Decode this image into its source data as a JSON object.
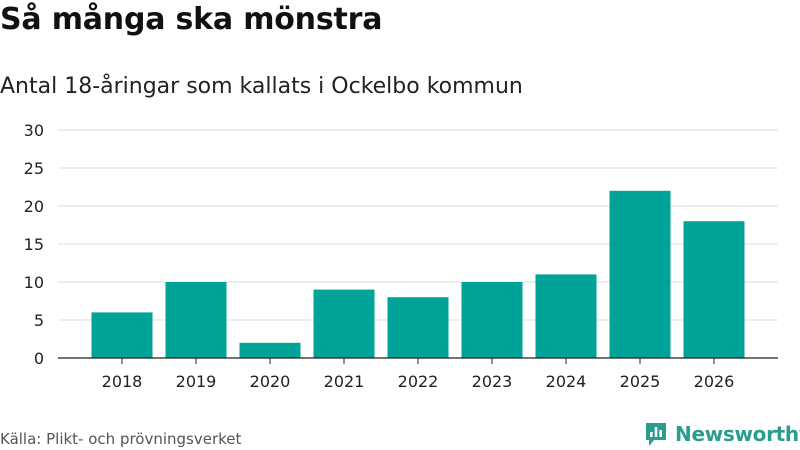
{
  "header": {
    "title": "Så många ska mönstra",
    "subtitle": "Antal 18-åringar som kallats i Ockelbo kommun"
  },
  "footer": {
    "source": "Källa: Plikt- och prövningsverket",
    "brand": "Newsworthy"
  },
  "colors": {
    "bar": "#00a398",
    "grid": "#dddddd",
    "axis": "#222222",
    "brand": "#2a9d8f"
  },
  "chart_data": {
    "type": "bar",
    "title": "Så många ska mönstra",
    "subtitle": "Antal 18-åringar som kallats i Ockelbo kommun",
    "xlabel": "",
    "ylabel": "",
    "categories": [
      "2018",
      "2019",
      "2020",
      "2021",
      "2022",
      "2023",
      "2024",
      "2025",
      "2026"
    ],
    "values": [
      6,
      10,
      2,
      9,
      8,
      10,
      11,
      22,
      18
    ],
    "ylim": [
      0,
      30
    ],
    "yticks": [
      0,
      5,
      10,
      15,
      20,
      25,
      30
    ],
    "grid": true
  }
}
